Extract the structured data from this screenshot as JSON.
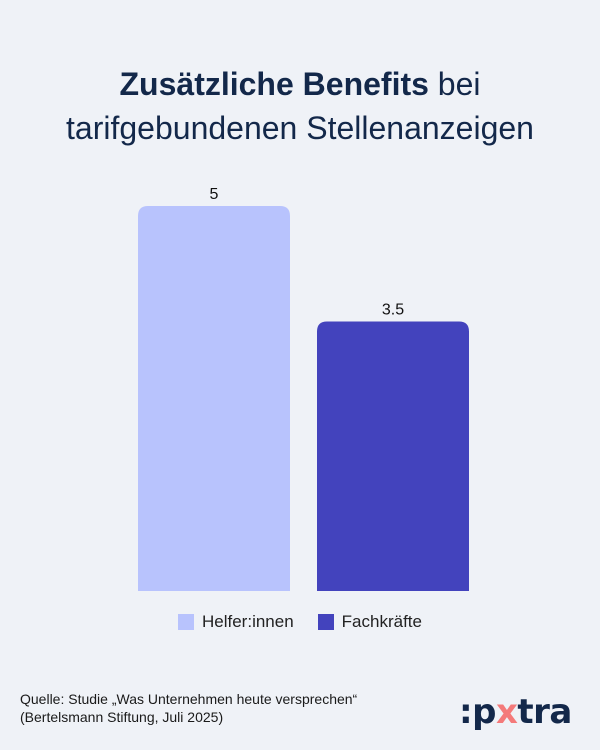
{
  "title": {
    "bold": "Zusätzliche Benefits",
    "regular": " bei",
    "line2": "tarifgebundenen Stellenanzeigen"
  },
  "chart_data": {
    "type": "bar",
    "title": "Zusätzliche Benefits bei tarifgebundenen Stellenanzeigen",
    "categories": [
      "Helfer:innen",
      "Fachkräfte"
    ],
    "values": [
      5,
      3.5
    ],
    "value_labels": [
      "5",
      "3.5"
    ],
    "colors": [
      "#b8c3fd",
      "#4343bd"
    ],
    "ylim": [
      0,
      5
    ],
    "grid": false,
    "legend": "bottom",
    "legend_entries": [
      "Helfer:innen",
      "Fachkräfte"
    ]
  },
  "source": {
    "line1": "Quelle: Studie „Was Unternehmen heute versprechen“",
    "line2": "(Bertelsmann Stiftung, Juli 2025)"
  },
  "logo": {
    "text": ":pxtra",
    "accent": "#f47a7a"
  }
}
